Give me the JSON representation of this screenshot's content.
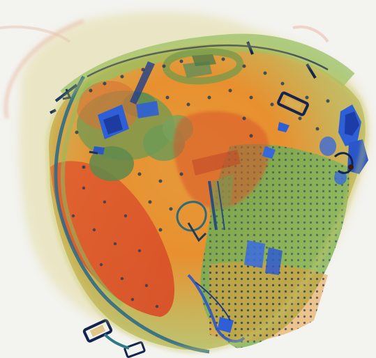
{
  "image": {
    "kind": "x-ray-baggage-scan",
    "background_color": "#f3f3ef",
    "palette": {
      "organic_orange": "#e8782f",
      "organic_red": "#d9532a",
      "mixed_green": "#7bb04a",
      "dense_green": "#5b8a4a",
      "metal_blue": "#2f5fd6",
      "metal_dark": "#13244f",
      "strap_teal": "#2d7a86",
      "halo_yellow": "#d9d07a"
    },
    "objects": [
      "bag-body",
      "shoulder-strap",
      "top-handle",
      "pocket-orange",
      "pocket-green",
      "grid-panel",
      "blue-gadget-cluster",
      "buckle-bottom-left",
      "buckle-top-right",
      "zipper-line"
    ]
  }
}
